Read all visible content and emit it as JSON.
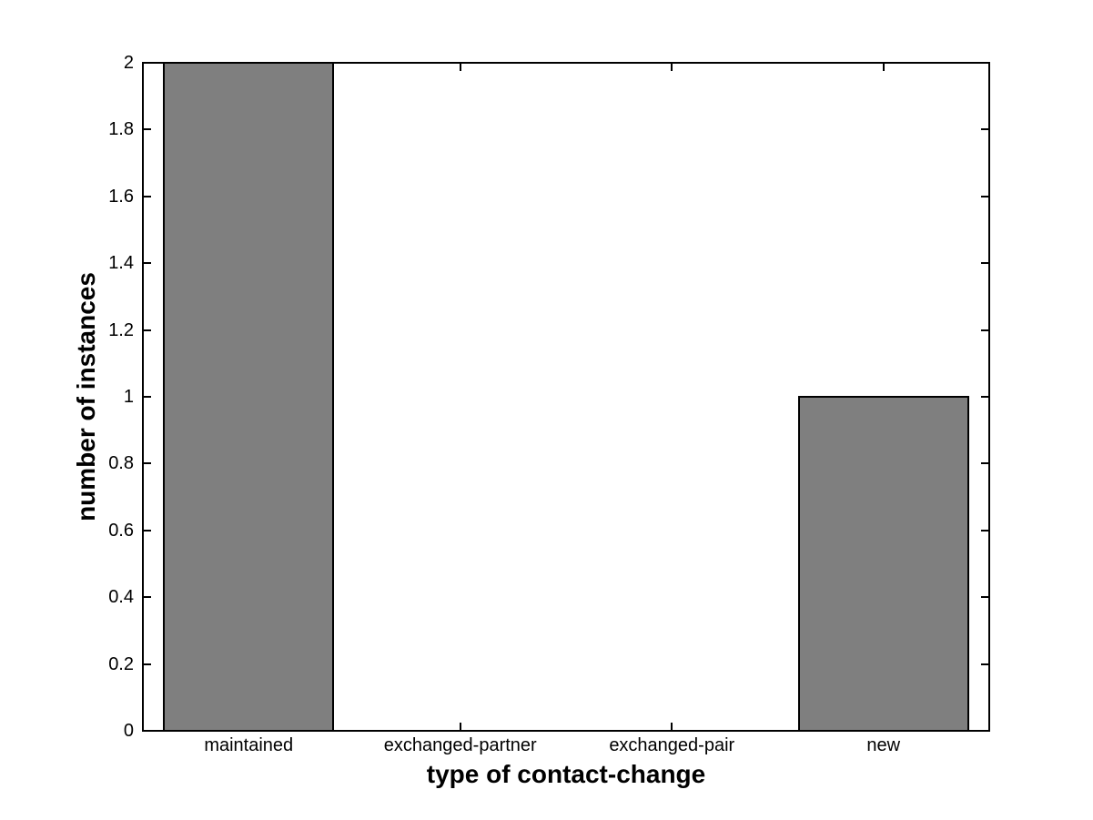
{
  "chart_data": {
    "type": "bar",
    "title": "",
    "xlabel": "type of contact-change",
    "ylabel": "number of instances",
    "categories": [
      "maintained",
      "exchanged-partner",
      "exchanged-pair",
      "new"
    ],
    "values": [
      2,
      0,
      0,
      1
    ],
    "ylim": [
      0,
      2
    ],
    "yticks": [
      0,
      0.2,
      0.4,
      0.6,
      0.8,
      1,
      1.2,
      1.4,
      1.6,
      1.8,
      2
    ],
    "ytick_labels": [
      "0",
      "0.2",
      "0.4",
      "0.6",
      "0.8",
      "1",
      "1.2",
      "1.4",
      "1.6",
      "1.8",
      "2"
    ],
    "bar_width_fraction": 0.8,
    "grid": false,
    "legend_position": "none",
    "box": true,
    "colors": {
      "bar_fill": "#7f7f7f",
      "bar_edge": "#000000",
      "axis": "#000000",
      "background": "#ffffff",
      "text": "#000000"
    }
  }
}
